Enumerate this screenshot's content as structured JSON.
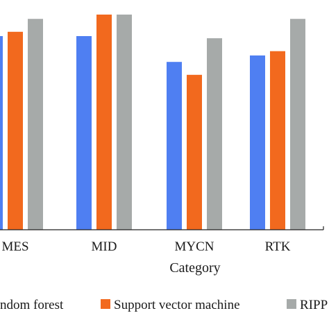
{
  "chart_data": {
    "type": "bar",
    "xlabel": "Category",
    "categories": [
      "MES",
      "MID",
      "MYCN",
      "RTK"
    ],
    "category_labels": [
      "MES",
      "MID",
      "MYCN",
      "RTK"
    ],
    "ylim": [
      0,
      1
    ],
    "grid": false,
    "legend_placement": "bottom",
    "series": [
      {
        "name": "Random forest",
        "legend_label": "ndom forest",
        "color": "#4f7ff2",
        "values": [
          0.9,
          0.9,
          0.78,
          0.81
        ]
      },
      {
        "name": "Support vector machine",
        "legend_label": "Support vector machine",
        "color": "#f2691e",
        "values": [
          0.92,
          1.0,
          0.72,
          0.83
        ]
      },
      {
        "name": "RIPPER",
        "legend_label": "RIPP",
        "color": "#a6aaa9",
        "values": [
          0.98,
          1.0,
          0.89,
          0.98
        ]
      }
    ]
  }
}
